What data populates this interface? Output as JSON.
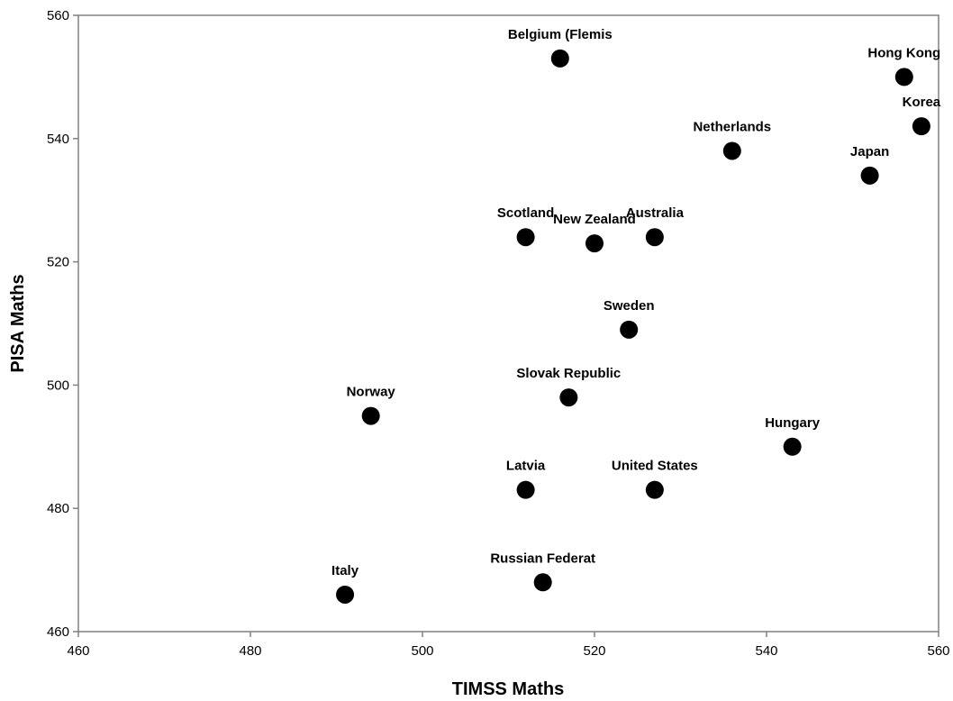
{
  "chart_data": {
    "type": "scatter",
    "title": "",
    "xlabel": "TIMSS Maths",
    "ylabel": "PISA Maths",
    "xlim": [
      460,
      560
    ],
    "ylim": [
      460,
      560
    ],
    "xticks": [
      460,
      480,
      500,
      520,
      540,
      560
    ],
    "yticks": [
      460,
      480,
      500,
      520,
      540,
      560
    ],
    "grid": false,
    "legend": "none",
    "marker_color": "#000000",
    "points": [
      {
        "label": "Belgium (Flemis",
        "x": 516,
        "y": 553
      },
      {
        "label": "Hong Kong",
        "x": 556,
        "y": 550
      },
      {
        "label": "Korea",
        "x": 558,
        "y": 542
      },
      {
        "label": "Netherlands",
        "x": 536,
        "y": 538
      },
      {
        "label": "Japan",
        "x": 552,
        "y": 534
      },
      {
        "label": "Scotland",
        "x": 512,
        "y": 524
      },
      {
        "label": "New Zealand",
        "x": 520,
        "y": 523
      },
      {
        "label": "Australia",
        "x": 527,
        "y": 524
      },
      {
        "label": "Sweden",
        "x": 524,
        "y": 509
      },
      {
        "label": "Slovak Republic",
        "x": 517,
        "y": 498
      },
      {
        "label": "Norway",
        "x": 494,
        "y": 495
      },
      {
        "label": "Hungary",
        "x": 543,
        "y": 490
      },
      {
        "label": "Latvia",
        "x": 512,
        "y": 483
      },
      {
        "label": "United States",
        "x": 527,
        "y": 483
      },
      {
        "label": "Italy",
        "x": 491,
        "y": 466
      },
      {
        "label": "Russian Federat",
        "x": 514,
        "y": 468
      }
    ]
  }
}
